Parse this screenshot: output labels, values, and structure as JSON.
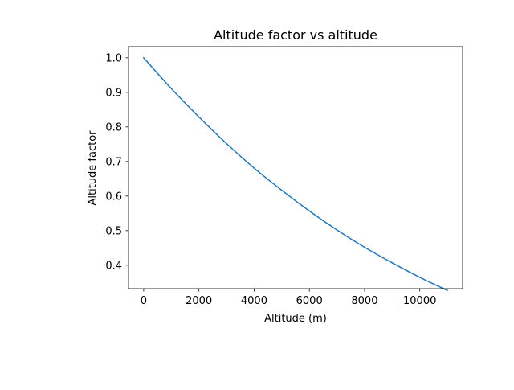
{
  "chart_data": {
    "type": "line",
    "title": "Altitude factor vs altitude",
    "xlabel": "Altitude (m)",
    "ylabel": "Altitude factor",
    "xlim": [
      -550,
      11550
    ],
    "ylim": [
      0.3322,
      1.0322
    ],
    "xticks": [
      0,
      2000,
      4000,
      6000,
      8000,
      10000
    ],
    "xtick_labels": [
      "0",
      "2000",
      "4000",
      "6000",
      "8000",
      "10000"
    ],
    "yticks": [
      0.4,
      0.5,
      0.6,
      0.7,
      0.8,
      0.9,
      1.0
    ],
    "ytick_labels": [
      "0.4",
      "0.5",
      "0.6",
      "0.7",
      "0.8",
      "0.9",
      "1.0"
    ],
    "grid": false,
    "series": [
      {
        "color": "#1f77b4",
        "x": [
          0,
          1000,
          2000,
          3000,
          4000,
          5000,
          6000,
          7000,
          8000,
          9000,
          10000,
          11000
        ],
        "y": [
          1.0,
          0.911,
          0.829,
          0.752,
          0.681,
          0.617,
          0.557,
          0.502,
          0.452,
          0.407,
          0.365,
          0.327
        ]
      }
    ]
  }
}
